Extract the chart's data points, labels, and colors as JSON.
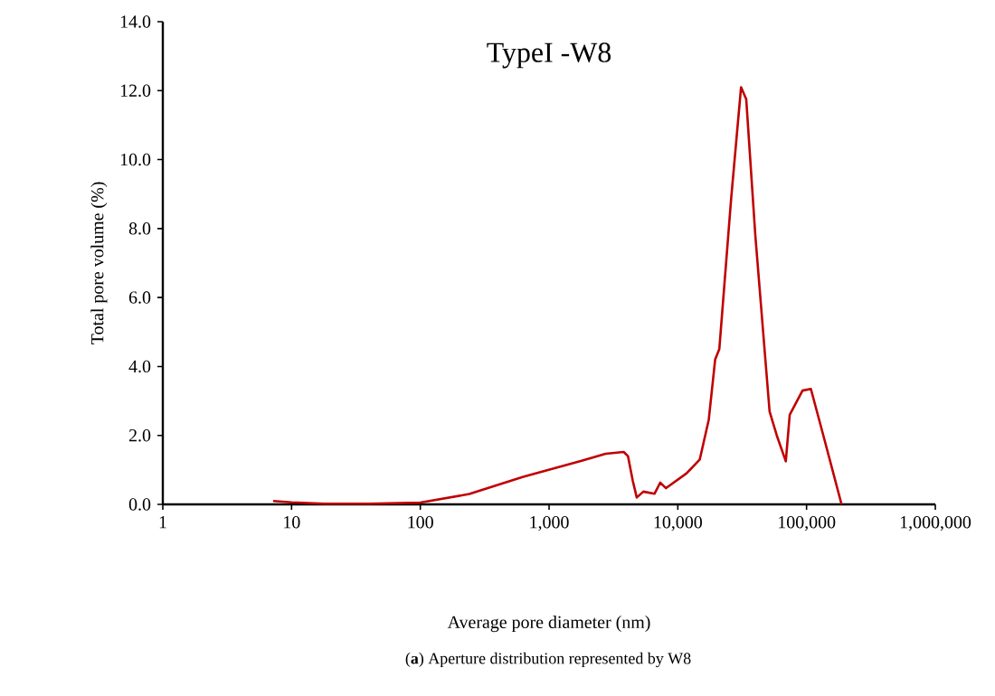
{
  "chart_data": {
    "type": "line",
    "title": "TypeI -W8",
    "xlabel": "Average pore diameter (nm)",
    "ylabel": "Total pore volume (%)",
    "annotations": [
      "(**a**) Aperture distribution represented by W8"
    ],
    "log": "x",
    "grid": false,
    "marker": "none",
    "line_style": "solid",
    "xlim": [
      1,
      1000000
    ],
    "ylim": [
      0,
      14
    ],
    "xticks": [
      1,
      10,
      {
        "value": 100,
        "label": "100"
      },
      {
        "value": 1000,
        "label": "1,000"
      },
      {
        "value": 10000,
        "label": "10,000"
      },
      {
        "value": 100000,
        "label": "100,000"
      },
      {
        "value": 1000000,
        "label": "1,000,000"
      }
    ],
    "yticks": [
      {
        "value": 0,
        "label": "0.0"
      },
      {
        "value": 2,
        "label": "2.0"
      },
      {
        "value": 4,
        "label": "4.0"
      },
      {
        "value": 6,
        "label": "6.0"
      },
      {
        "value": 8,
        "label": "8.0"
      },
      {
        "value": 10,
        "label": "10.0"
      },
      {
        "value": 12,
        "label": "12.0"
      },
      {
        "value": 14,
        "label": "14.0"
      }
    ],
    "series": [
      {
        "color": "#c00000",
        "x": [
          7.2,
          10,
          18,
          40,
          100,
          240,
          630,
          1740,
          2750,
          3800,
          4100,
          4470,
          4800,
          5400,
          6600,
          7300,
          8100,
          11700,
          14800,
          17400,
          19500,
          21000,
          26000,
          31000,
          34000,
          40000,
          51600,
          58700,
          69000,
          74000,
          93000,
          108000,
          135000,
          187000
        ],
        "values": [
          0.1,
          0.06,
          0.02,
          0.02,
          0.05,
          0.3,
          0.8,
          1.25,
          1.47,
          1.52,
          1.4,
          0.68,
          0.2,
          0.37,
          0.31,
          0.63,
          0.47,
          0.9,
          1.3,
          2.46,
          4.2,
          4.5,
          8.9,
          12.1,
          11.75,
          7.8,
          2.7,
          2.0,
          1.25,
          2.6,
          3.3,
          3.35,
          2.0,
          0
        ]
      }
    ]
  }
}
